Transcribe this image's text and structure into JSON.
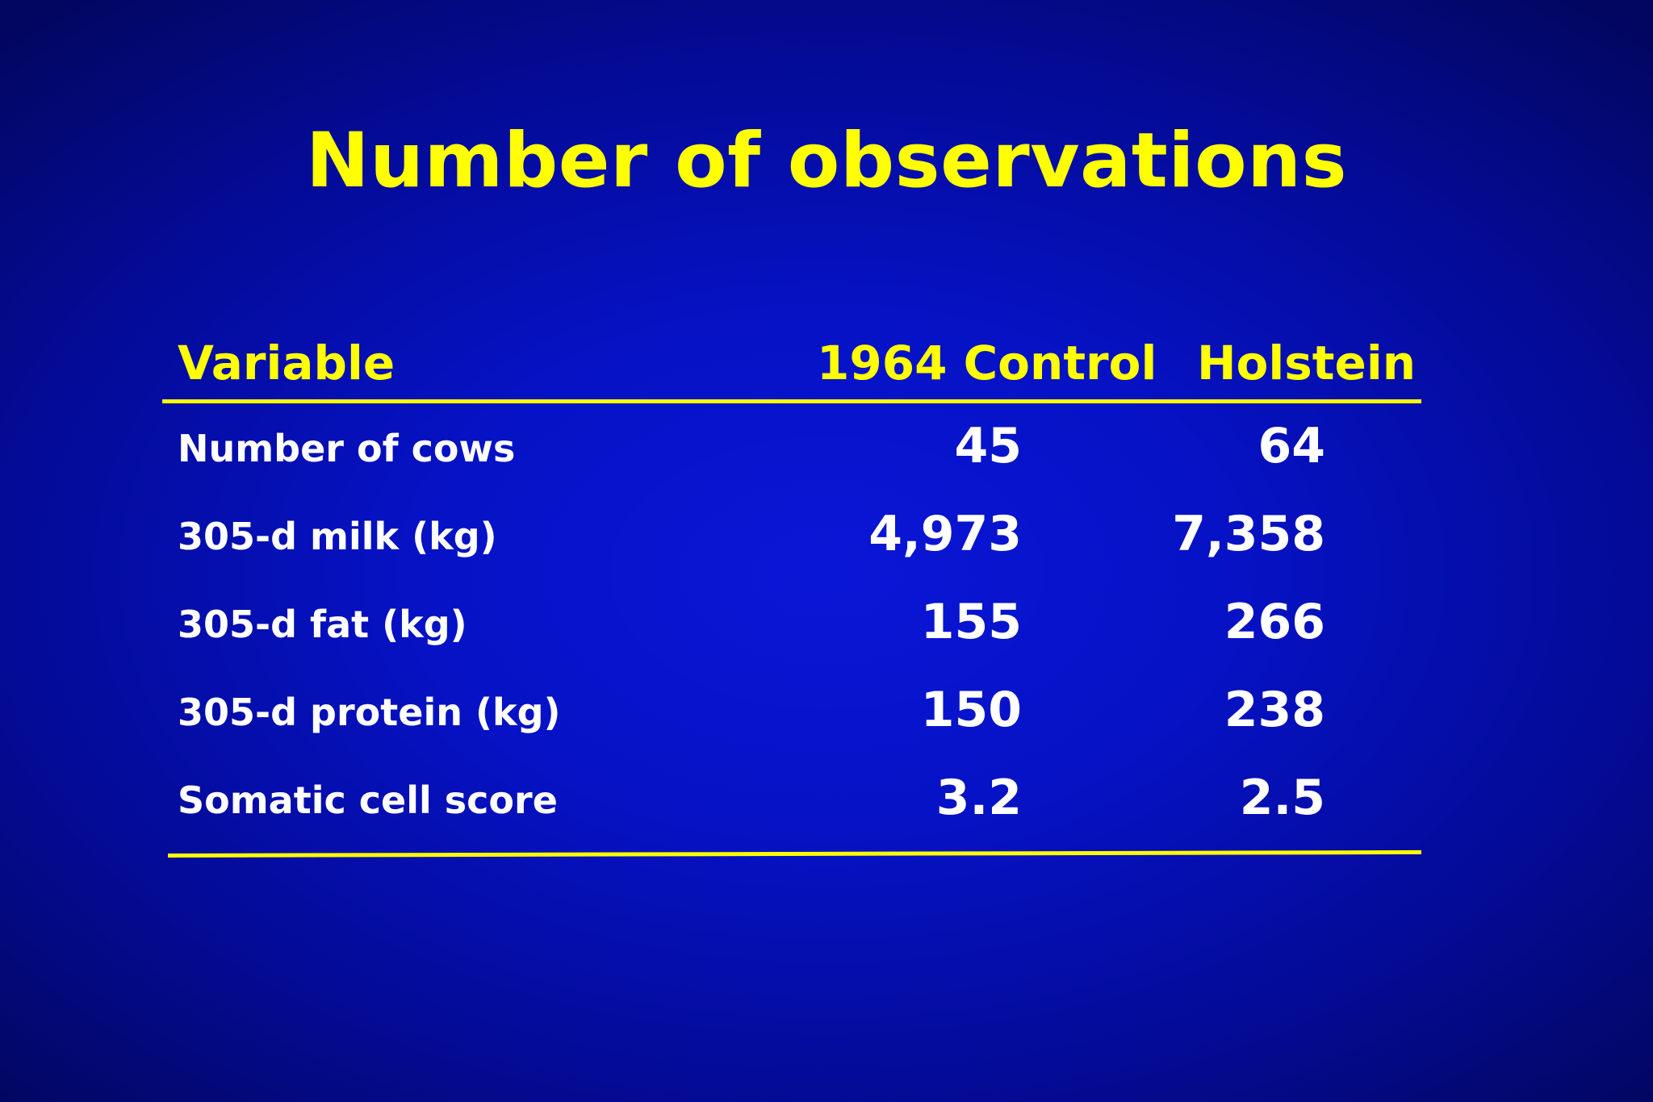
{
  "slide": {
    "title": "Number of observations",
    "table": {
      "headers": [
        "Variable",
        "1964 Control",
        "Holstein"
      ],
      "rows": [
        [
          "Number of cows",
          "45",
          "64"
        ],
        [
          "305-d milk (kg)",
          "4,973",
          "7,358"
        ],
        [
          "305-d fat (kg)",
          "155",
          "266"
        ],
        [
          "305-d protein (kg)",
          "150",
          "238"
        ],
        [
          "Somatic cell score",
          "3.2",
          "2.5"
        ]
      ]
    }
  },
  "colors": {
    "background": "#0612c4",
    "title": "#ffff00",
    "header": "#ffff00",
    "rules": "#ffff00",
    "body_text": "#ffffff"
  }
}
